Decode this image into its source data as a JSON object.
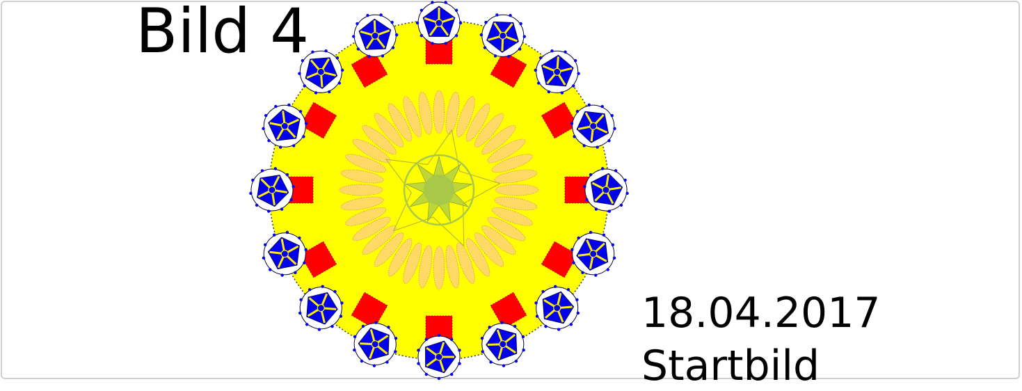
{
  "title": "Bild 4",
  "date": "18.04.2017",
  "subtitle": "Startbild",
  "colors": {
    "disk": "#ffff00",
    "disk_outline": "#333333",
    "squares": "#ff0000",
    "petals": "#ffd966",
    "petal_outline": "#c8a24a",
    "center": "#a8c84a",
    "center_star": "#b9b93a",
    "ornament_blue": "#0000ee",
    "ornament_yellow": "#ffee00",
    "frame": "#cfcfcf"
  },
  "ornaments": {
    "blue_rosette_count": 16,
    "red_square_count": 12,
    "petal_count": 36
  }
}
